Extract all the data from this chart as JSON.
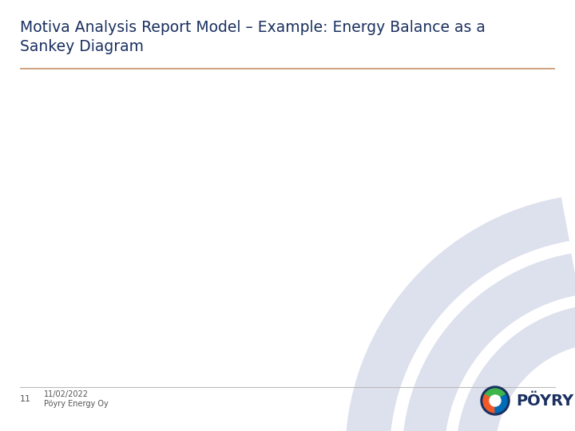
{
  "title_line1": "Motiva Analysis Report Model – Example: Energy Balance as a",
  "title_line2": "Sankey Diagram",
  "title_color": "#1a3060",
  "title_fontsize": 13.5,
  "separator_color": "#c8916a",
  "bg_color": "#ffffff",
  "footer_line_color": "#bbbbbb",
  "footer_number": "11",
  "footer_date": "11/02/2022",
  "footer_company": "Pöyry Energy Oy",
  "footer_text_color": "#555555",
  "arc_color": "#dde0ed",
  "poyry_text": "PÖYRY",
  "poyry_text_color": "#1a3060",
  "logo_green": "#3cb54a",
  "logo_orange": "#f05a28",
  "logo_blue": "#006cb7",
  "logo_dark": "#1a3060"
}
